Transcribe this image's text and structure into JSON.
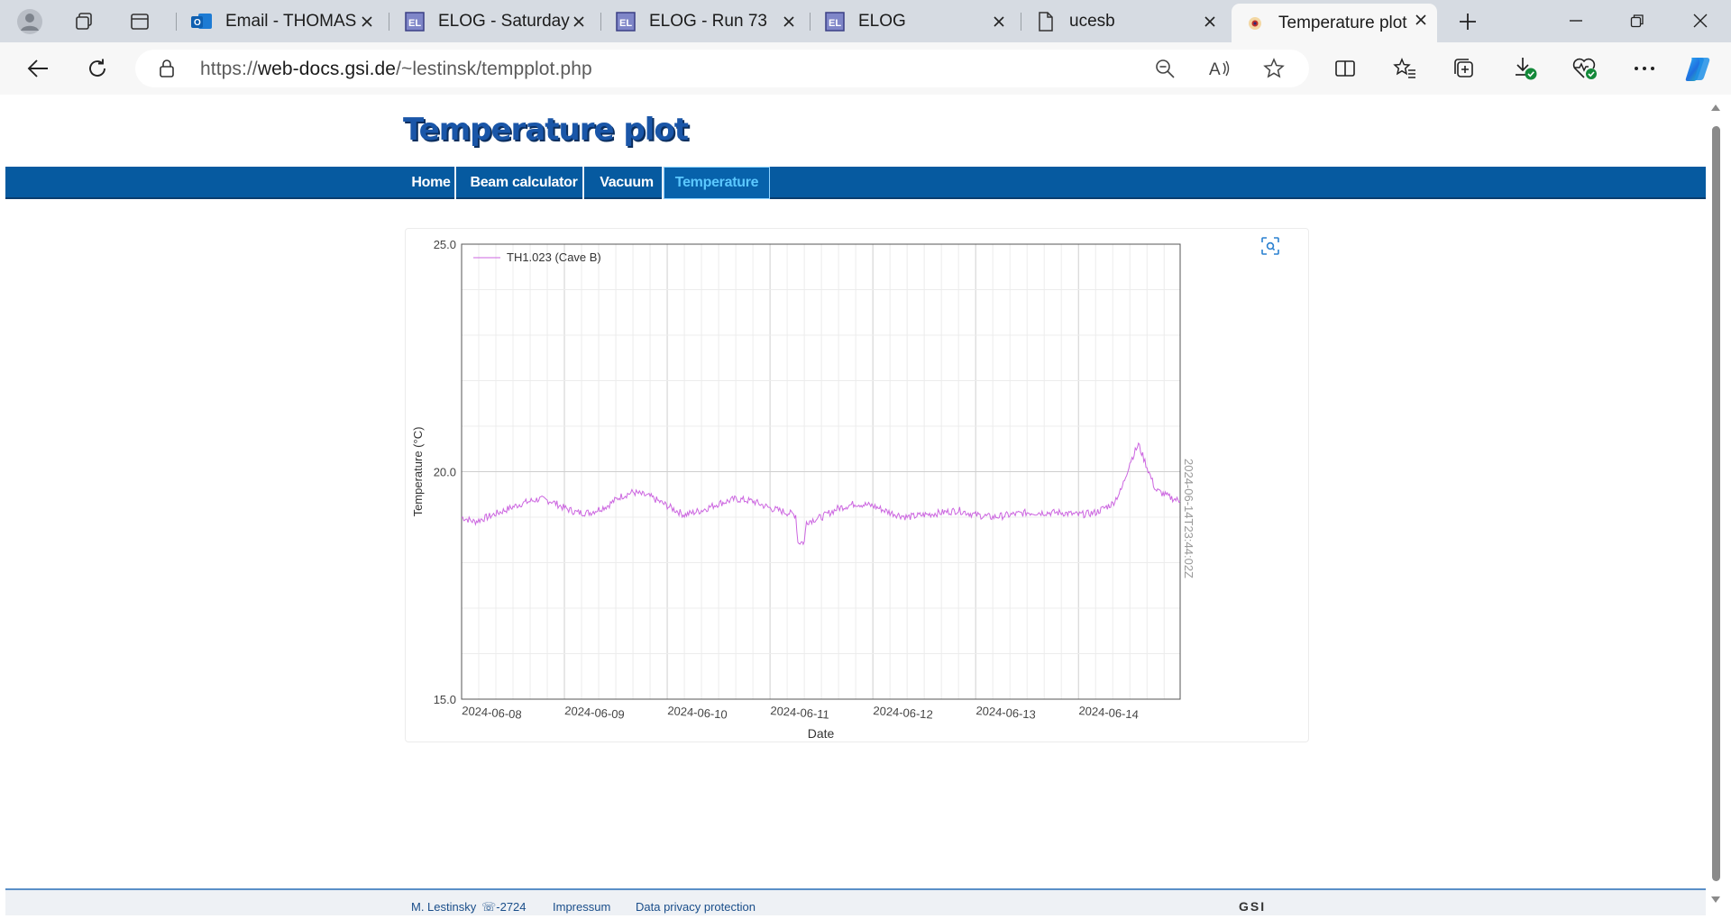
{
  "browser": {
    "tabs": [
      {
        "title": "Email - THOMAS",
        "icon": "outlook-icon"
      },
      {
        "title": "ELOG - Saturday",
        "icon": "elog-icon"
      },
      {
        "title": "ELOG - Run 73",
        "icon": "elog-icon"
      },
      {
        "title": "ELOG",
        "icon": "elog-icon"
      },
      {
        "title": "ucesb",
        "icon": "document-icon"
      },
      {
        "title": "Temperature plot",
        "icon": "gsi-icon",
        "active": true
      }
    ],
    "url_prefix": "https://",
    "url_host": "web-docs.gsi.de",
    "url_path": "/~lestinsk/tempplot.php"
  },
  "page": {
    "site_title": "Temperature plot",
    "nav": [
      {
        "label": "Home"
      },
      {
        "label": "Beam calculator"
      },
      {
        "label": "Vacuum"
      },
      {
        "label": "Temperature",
        "active": true
      }
    ],
    "footer": {
      "author": "M. Lestinsky",
      "phone": "☏-2724",
      "impressum": "Impressum",
      "privacy": "Data privacy protection",
      "logo_text": "GSI"
    }
  },
  "chart_data": {
    "type": "line",
    "xlabel": "Date",
    "ylabel": "Temperature (°C)",
    "ylim": [
      15.0,
      25.0
    ],
    "y_ticks": [
      "15.0",
      "20.0",
      "25.0"
    ],
    "x_ticks": [
      "2024-06-08",
      "2024-06-09",
      "2024-06-10",
      "2024-06-11",
      "2024-06-12",
      "2024-06-13",
      "2024-06-14"
    ],
    "xlim": [
      "2024-06-08T00:00Z",
      "2024-06-14T23:44Z"
    ],
    "right_label": "2024-06-14T23:44:02Z",
    "legend_position": "top-left",
    "grid": true,
    "color": "#cc66e0",
    "series": [
      {
        "name": "TH1.023 (Cave B)",
        "points": [
          [
            "2024-06-08T00:00Z",
            19.0
          ],
          [
            "2024-06-08T03:00Z",
            18.9
          ],
          [
            "2024-06-08T06:00Z",
            19.0
          ],
          [
            "2024-06-08T10:00Z",
            19.15
          ],
          [
            "2024-06-08T14:00Z",
            19.3
          ],
          [
            "2024-06-08T18:00Z",
            19.4
          ],
          [
            "2024-06-08T21:00Z",
            19.35
          ],
          [
            "2024-06-09T00:00Z",
            19.2
          ],
          [
            "2024-06-09T03:00Z",
            19.1
          ],
          [
            "2024-06-09T06:00Z",
            19.1
          ],
          [
            "2024-06-09T10:00Z",
            19.25
          ],
          [
            "2024-06-09T13:00Z",
            19.45
          ],
          [
            "2024-06-09T16:00Z",
            19.55
          ],
          [
            "2024-06-09T20:00Z",
            19.45
          ],
          [
            "2024-06-10T00:00Z",
            19.25
          ],
          [
            "2024-06-10T04:00Z",
            19.05
          ],
          [
            "2024-06-10T08:00Z",
            19.15
          ],
          [
            "2024-06-10T12:00Z",
            19.3
          ],
          [
            "2024-06-10T16:00Z",
            19.4
          ],
          [
            "2024-06-10T20:00Z",
            19.35
          ],
          [
            "2024-06-11T00:00Z",
            19.2
          ],
          [
            "2024-06-11T04:00Z",
            19.1
          ],
          [
            "2024-06-11T06:00Z",
            19.05
          ],
          [
            "2024-06-11T06:30Z",
            18.45
          ],
          [
            "2024-06-11T08:00Z",
            18.45
          ],
          [
            "2024-06-11T08:30Z",
            18.9
          ],
          [
            "2024-06-11T12:00Z",
            19.0
          ],
          [
            "2024-06-11T16:00Z",
            19.2
          ],
          [
            "2024-06-11T20:00Z",
            19.3
          ],
          [
            "2024-06-12T00:00Z",
            19.25
          ],
          [
            "2024-06-12T04:00Z",
            19.1
          ],
          [
            "2024-06-12T08:00Z",
            19.0
          ],
          [
            "2024-06-12T12:00Z",
            19.05
          ],
          [
            "2024-06-12T16:00Z",
            19.1
          ],
          [
            "2024-06-12T20:00Z",
            19.15
          ],
          [
            "2024-06-13T00:00Z",
            19.05
          ],
          [
            "2024-06-13T04:00Z",
            19.0
          ],
          [
            "2024-06-13T08:00Z",
            19.05
          ],
          [
            "2024-06-13T12:00Z",
            19.1
          ],
          [
            "2024-06-13T16:00Z",
            19.1
          ],
          [
            "2024-06-13T20:00Z",
            19.1
          ],
          [
            "2024-06-14T00:00Z",
            19.05
          ],
          [
            "2024-06-14T04:00Z",
            19.1
          ],
          [
            "2024-06-14T08:00Z",
            19.3
          ],
          [
            "2024-06-14T10:00Z",
            19.6
          ],
          [
            "2024-06-14T12:00Z",
            20.2
          ],
          [
            "2024-06-14T14:00Z",
            20.6
          ],
          [
            "2024-06-14T16:00Z",
            20.1
          ],
          [
            "2024-06-14T18:00Z",
            19.6
          ],
          [
            "2024-06-14T21:00Z",
            19.45
          ],
          [
            "2024-06-14T23:44Z",
            19.35
          ]
        ]
      }
    ]
  }
}
